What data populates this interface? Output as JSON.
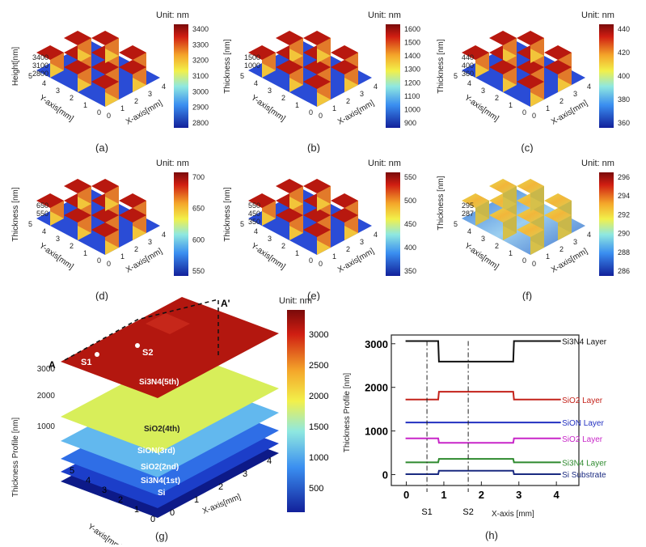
{
  "unit_label": "Unit: nm",
  "y_axis_label": "Y-axis[mm]",
  "x_axis_label": "X-axis[mm]",
  "colors": {
    "low": "#1a2fb8",
    "mid": "#9fe8f0",
    "high": "#b51a12"
  },
  "chart_data": [
    {
      "type": "heatmap",
      "caption": "(a)",
      "zlabel": "Height[nm]",
      "z_ticks": [
        "3400",
        "3100",
        "2800"
      ],
      "colorbar_ticks": [
        "3400",
        "3300",
        "3200",
        "3100",
        "3000",
        "2900",
        "2800"
      ],
      "y_ticks": [
        "5",
        "4",
        "3",
        "2",
        "1",
        "0"
      ],
      "x_ticks": [
        "0",
        "1",
        "2",
        "3",
        "4"
      ]
    },
    {
      "type": "heatmap",
      "caption": "(b)",
      "zlabel": "Thickness [nm]",
      "z_ticks": [
        "1500",
        "1000"
      ],
      "colorbar_ticks": [
        "1600",
        "1500",
        "1400",
        "1300",
        "1200",
        "1100",
        "1000",
        "900"
      ],
      "y_ticks": [
        "5",
        "4",
        "3",
        "2",
        "1",
        "0"
      ],
      "x_ticks": [
        "0",
        "1",
        "2",
        "3",
        "4"
      ]
    },
    {
      "type": "heatmap",
      "caption": "(c)",
      "zlabel": "Thickness [nm]",
      "z_ticks": [
        "440",
        "400",
        "360"
      ],
      "colorbar_ticks": [
        "440",
        "420",
        "400",
        "380",
        "360"
      ],
      "y_ticks": [
        "5",
        "4",
        "3",
        "2",
        "1",
        "0"
      ],
      "x_ticks": [
        "0",
        "1",
        "2",
        "3",
        "4"
      ]
    },
    {
      "type": "heatmap",
      "caption": "(d)",
      "zlabel": "Thickness [nm]",
      "z_ticks": [
        "650",
        "550"
      ],
      "colorbar_ticks": [
        "700",
        "650",
        "600",
        "550"
      ],
      "y_ticks": [
        "5",
        "4",
        "3",
        "2",
        "1",
        "0"
      ],
      "x_ticks": [
        "0",
        "1",
        "2",
        "3",
        "4"
      ]
    },
    {
      "type": "heatmap",
      "caption": "(e)",
      "zlabel": "Thickness [nm]",
      "z_ticks": [
        "550",
        "450",
        "350"
      ],
      "colorbar_ticks": [
        "550",
        "500",
        "450",
        "400",
        "350"
      ],
      "y_ticks": [
        "5",
        "4",
        "3",
        "2",
        "1",
        "0"
      ],
      "x_ticks": [
        "0",
        "1",
        "2",
        "3",
        "4"
      ]
    },
    {
      "type": "heatmap",
      "caption": "(f)",
      "zlabel": "Thickness [nm]",
      "z_ticks": [
        "295",
        "287"
      ],
      "colorbar_ticks": [
        "296",
        "294",
        "292",
        "290",
        "288",
        "286"
      ],
      "y_ticks": [
        "5",
        "4",
        "3",
        "2",
        "1",
        "0"
      ],
      "x_ticks": [
        "0",
        "1",
        "2",
        "3",
        "4"
      ]
    },
    {
      "type": "heatmap",
      "caption": "(g)",
      "zlabel": "Thickness Profile [nm]",
      "z_ticks": [
        "3000",
        "2000",
        "1000"
      ],
      "colorbar_ticks": [
        "3000",
        "2500",
        "2000",
        "1500",
        "1000",
        "500"
      ],
      "y_ticks": [
        "5",
        "4",
        "3",
        "2",
        "1",
        "0"
      ],
      "x_ticks": [
        "0",
        "1",
        "2",
        "3",
        "4"
      ],
      "annotations": [
        "A",
        "A'",
        "S1",
        "S2"
      ],
      "layer_labels": [
        "Si3N4(5th)",
        "SiO2(4th)",
        "SiON(3rd)",
        "SiO2(2nd)",
        "Si3N4(1st)",
        "Si"
      ]
    },
    {
      "type": "line",
      "caption": "(h)",
      "xlabel": "X-axis [mm]",
      "ylabel": "Thickness Profile [nm]",
      "xlim": [
        -0.4,
        4.6
      ],
      "ylim": [
        -250,
        3200
      ],
      "x_ticks": [
        0,
        1,
        2,
        3,
        4
      ],
      "y_ticks": [
        0,
        1000,
        2000,
        3000
      ],
      "markers": [
        {
          "label": "S1",
          "x": 0.55
        },
        {
          "label": "S2",
          "x": 1.65
        }
      ],
      "series": [
        {
          "name": "Si3N4 Layer",
          "color": "#111111",
          "x": [
            -0.02,
            0.85,
            0.87,
            2.85,
            2.87,
            4.12
          ],
          "y": [
            3060,
            3060,
            2590,
            2590,
            3060,
            3060
          ]
        },
        {
          "name": "SiO2 Layer",
          "color": "#c4221a",
          "x": [
            -0.02,
            0.85,
            0.87,
            2.85,
            2.87,
            4.12
          ],
          "y": [
            1720,
            1720,
            1900,
            1900,
            1720,
            1720
          ]
        },
        {
          "name": "SiON Layer",
          "color": "#2230c0",
          "x": [
            -0.02,
            4.12
          ],
          "y": [
            1195,
            1195
          ]
        },
        {
          "name": "SiO2 Layer",
          "color": "#c826c8",
          "x": [
            -0.02,
            0.85,
            0.87,
            2.85,
            2.87,
            4.12
          ],
          "y": [
            830,
            830,
            730,
            730,
            830,
            830
          ]
        },
        {
          "name": "Si3N4 Layer",
          "color": "#2e8a2e",
          "x": [
            -0.02,
            0.85,
            0.87,
            2.85,
            2.87,
            4.12
          ],
          "y": [
            280,
            280,
            360,
            360,
            280,
            280
          ]
        },
        {
          "name": "Si Substrate",
          "color": "#1a2a80",
          "x": [
            -0.02,
            0.85,
            0.87,
            2.85,
            2.87,
            4.12
          ],
          "y": [
            10,
            10,
            90,
            90,
            10,
            10
          ]
        }
      ]
    }
  ]
}
